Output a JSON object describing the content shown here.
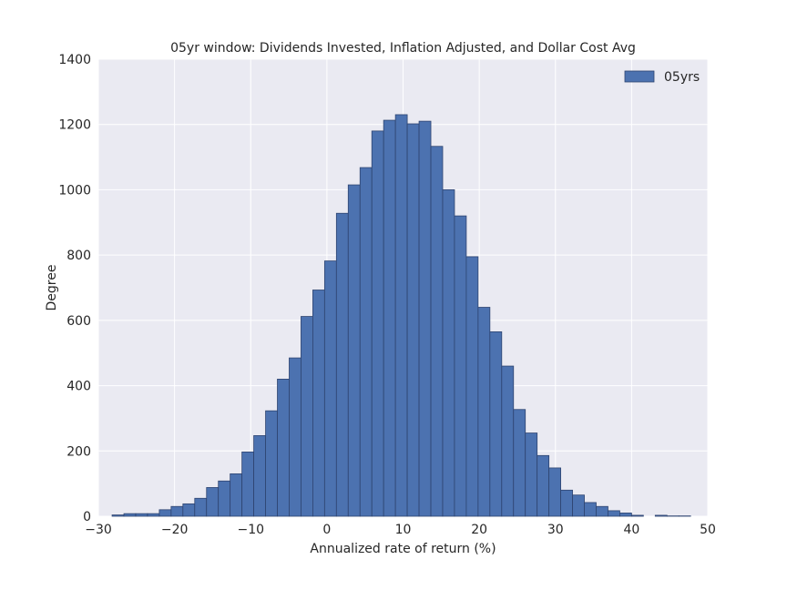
{
  "chart_data": {
    "type": "bar",
    "title": "05yr window: Dividends Invested, Inflation Adjusted, and Dollar Cost Avg",
    "xlabel": "Annualized rate of return (%)",
    "ylabel": "Degree",
    "xlim": [
      -30,
      50
    ],
    "ylim": [
      0,
      1400
    ],
    "xticks": [
      -30,
      -20,
      -10,
      0,
      10,
      20,
      30,
      40,
      50
    ],
    "xtick_labels": [
      "−30",
      "−20",
      "−10",
      "0",
      "10",
      "20",
      "30",
      "40",
      "50"
    ],
    "yticks": [
      0,
      200,
      400,
      600,
      800,
      1000,
      1200,
      1400
    ],
    "ytick_labels": [
      "0",
      "200",
      "400",
      "600",
      "800",
      "1000",
      "1200",
      "1400"
    ],
    "grid": true,
    "legend_position": "top-right",
    "bin_width": 1.55,
    "bin_start": -28.2,
    "series": [
      {
        "name": "05yrs",
        "color": "#4c72b0",
        "values": [
          4,
          8,
          8,
          8,
          20,
          30,
          38,
          55,
          88,
          108,
          130,
          197,
          247,
          323,
          420,
          485,
          612,
          693,
          782,
          928,
          1015,
          1068,
          1180,
          1213,
          1230,
          1202,
          1210,
          1133,
          1000,
          920,
          795,
          640,
          565,
          460,
          327,
          255,
          186,
          148,
          80,
          65,
          42,
          30,
          17,
          10,
          3,
          0,
          3,
          1,
          1
        ]
      }
    ]
  }
}
